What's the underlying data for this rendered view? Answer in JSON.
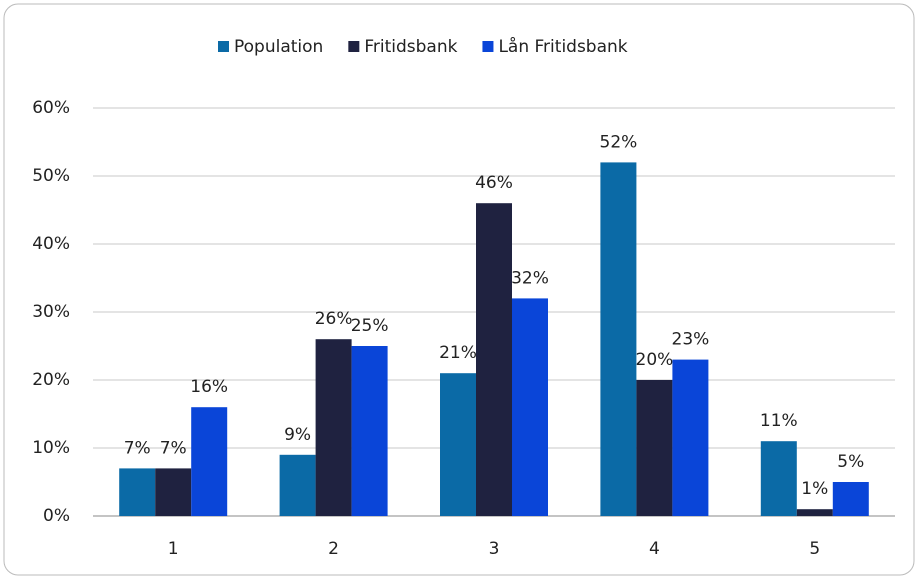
{
  "chart_data": {
    "type": "bar",
    "categories": [
      "1",
      "2",
      "3",
      "4",
      "5"
    ],
    "series": [
      {
        "name": "Population",
        "color": "#0b6aa6",
        "values": [
          7,
          9,
          21,
          52,
          11
        ],
        "value_labels": [
          "7%",
          "9%",
          "21%",
          "52%",
          "11%"
        ]
      },
      {
        "name": "Fritidsbank",
        "color": "#1f2240",
        "values": [
          7,
          26,
          46,
          20,
          1
        ],
        "value_labels": [
          "7%",
          "26%",
          "46%",
          "20%",
          "1%"
        ]
      },
      {
        "name": "Lån Fritidsbank",
        "color": "#0a45d8",
        "values": [
          16,
          25,
          32,
          23,
          5
        ],
        "value_labels": [
          "16%",
          "25%",
          "32%",
          "23%",
          "5%"
        ]
      }
    ],
    "ylim": [
      0,
      60
    ],
    "yticks": [
      {
        "value": 0,
        "label": "0%"
      },
      {
        "value": 10,
        "label": "10%"
      },
      {
        "value": 20,
        "label": "20%"
      },
      {
        "value": 30,
        "label": "30%"
      },
      {
        "value": 40,
        "label": "40%"
      },
      {
        "value": 50,
        "label": "50%"
      },
      {
        "value": 60,
        "label": "60%"
      }
    ],
    "grid": true,
    "legend": "top"
  }
}
